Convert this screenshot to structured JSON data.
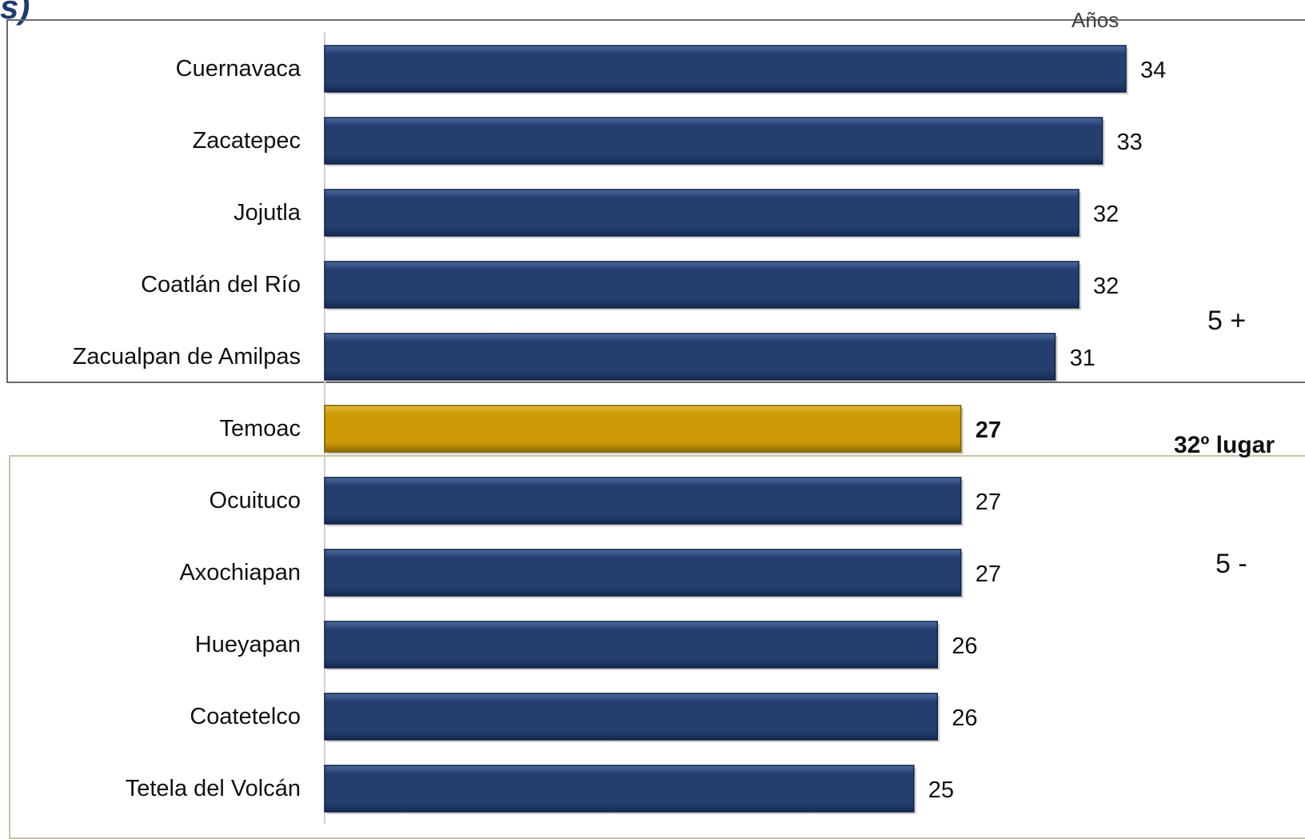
{
  "corner_glyph": "s)",
  "units_label": "Años",
  "group_top_label": "5 +",
  "group_bottom_label": "5 -",
  "rank_label": "32º lugar",
  "colors": {
    "bar": "#243f6e",
    "bar_highlight": "#cc9a06",
    "box_top_border": "#6b6b6b",
    "box_bottom_border": "#c9c2a3",
    "axis": "#d0d0d0"
  },
  "chart_data": {
    "type": "bar",
    "orientation": "horizontal",
    "xlim": [
      0,
      34
    ],
    "categories": [
      "Cuernavaca",
      "Zacatepec",
      "Jojutla",
      "Coatlán del Río",
      "Zacualpan de Amilpas",
      "Temoac",
      "Ocuituco",
      "Axochiapan",
      "Hueyapan",
      "Coatetelco",
      "Tetela del Volcán"
    ],
    "values": [
      34,
      33,
      32,
      32,
      31,
      27,
      27,
      27,
      26,
      26,
      25
    ],
    "highlight": "Temoac"
  }
}
